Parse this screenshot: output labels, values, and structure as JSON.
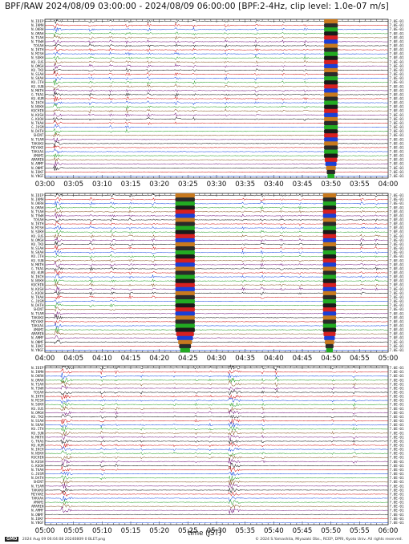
{
  "title": "BPF/RAW 2024/08/09 03:00:00 - 2024/08/09 06:00:00 [BPF:2-4Hz,  clip level: 1.0e-07 m/s]",
  "footer": {
    "logo": "GMO",
    "left_text": "2024 Aug 09 06:04:08   20240809 0 BLET.png",
    "right_text": "© 2024 S.Yamashita, Miyazaki Obs., RCEP, DPRI, Kyoto Univ. All rights reserved."
  },
  "colors": {
    "trace_cycle": [
      "#1a1a1a",
      "#d02020",
      "#1f4fe0",
      "#2aa02a",
      "#8b5a2b",
      "#7a2080"
    ],
    "clip_band": [
      "#c8791e",
      "#2a2a2a",
      "#22aa22",
      "#1a1a1a",
      "#d62020",
      "#1a3fd8"
    ]
  },
  "chart_data": {
    "type": "seismogram",
    "xlabel": "time (JST)",
    "stations": [
      "N.IDIP",
      "N.IKMH",
      "N.OKRH",
      "N.OMAH",
      "N.TSAH",
      "N.TSWH",
      "TOSAH",
      "N.IKTH",
      "N.MISH",
      "N.SUKH",
      "KU.SUS",
      "N.OMGH",
      "KU.TKO",
      "N.SSAH",
      "N.SKAH",
      "KU.ITH",
      "KU.SUN",
      "N.MKTH",
      "G.TKAG",
      "KU.KUM",
      "N.IKCH",
      "N.NSKH",
      "KUCHIN",
      "N.KUSH",
      "G.KUOH",
      "N.TKAH",
      "G.JUSM",
      "N.DATH",
      "SHINT",
      "N.TSAM",
      "TAKAKU",
      "MIYAKE",
      "TAKAAA",
      "AMAMI",
      "AMAMIN",
      "N.AMMF",
      "N.ONMF",
      "N.IOKF",
      "N.YNGF"
    ],
    "amplitude_label": "7.0E-01",
    "panels": [
      {
        "x_ticks": [
          "03:00",
          "03:05",
          "03:10",
          "03:15",
          "03:20",
          "03:25",
          "03:30",
          "03:35",
          "03:40",
          "03:45",
          "03:50",
          "03:55",
          "04:00"
        ],
        "x_range_min": [
          0,
          60
        ],
        "events": [
          {
            "t": 1.6,
            "dur": 1.4,
            "amp": 1.0,
            "cover": 0.94
          },
          {
            "t": 7.8,
            "dur": 1.0,
            "amp": 0.55,
            "cover": 0.62
          },
          {
            "t": 11.3,
            "dur": 0.8,
            "amp": 0.55,
            "cover": 0.7
          },
          {
            "t": 14.2,
            "dur": 1.1,
            "amp": 0.6,
            "cover": 0.7
          },
          {
            "t": 18.0,
            "dur": 0.9,
            "amp": 0.5,
            "cover": 0.65
          },
          {
            "t": 22.8,
            "dur": 1.0,
            "amp": 0.55,
            "cover": 0.66
          },
          {
            "t": 26.0,
            "dur": 0.7,
            "amp": 0.45,
            "cover": 0.62
          },
          {
            "t": 31.5,
            "dur": 0.8,
            "amp": 0.45,
            "cover": 0.6
          },
          {
            "t": 36.8,
            "dur": 0.8,
            "amp": 0.5,
            "cover": 0.62
          },
          {
            "t": 41.5,
            "dur": 0.7,
            "amp": 0.4,
            "cover": 0.58
          },
          {
            "t": 45.3,
            "dur": 0.8,
            "amp": 0.5,
            "cover": 0.64
          }
        ],
        "clip": [
          {
            "start": 48.8,
            "end": 51.2
          }
        ]
      },
      {
        "x_ticks": [
          "04:00",
          "04:05",
          "04:10",
          "04:15",
          "04:20",
          "04:25",
          "04:30",
          "04:35",
          "04:40",
          "04:45",
          "04:50",
          "04:55",
          "05:00"
        ],
        "x_range_min": [
          60,
          120
        ],
        "events": [
          {
            "t": 1.8,
            "dur": 1.4,
            "amp": 1.0,
            "cover": 0.94
          },
          {
            "t": 8.0,
            "dur": 0.8,
            "amp": 0.5,
            "cover": 0.7
          },
          {
            "t": 11.5,
            "dur": 1.0,
            "amp": 0.55,
            "cover": 0.72
          },
          {
            "t": 14.8,
            "dur": 0.9,
            "amp": 0.5,
            "cover": 0.66
          },
          {
            "t": 18.8,
            "dur": 0.8,
            "amp": 0.5,
            "cover": 0.66
          },
          {
            "t": 34.5,
            "dur": 0.8,
            "amp": 0.45,
            "cover": 0.62
          },
          {
            "t": 37.8,
            "dur": 0.9,
            "amp": 0.5,
            "cover": 0.66
          },
          {
            "t": 41.2,
            "dur": 0.8,
            "amp": 0.45,
            "cover": 0.6
          },
          {
            "t": 44.5,
            "dur": 0.7,
            "amp": 0.45,
            "cover": 0.62
          },
          {
            "t": 55.2,
            "dur": 0.8,
            "amp": 0.5,
            "cover": 0.64
          },
          {
            "t": 57.8,
            "dur": 0.7,
            "amp": 0.45,
            "cover": 0.6
          }
        ],
        "clip": [
          {
            "start": 22.8,
            "end": 26.2
          },
          {
            "start": 48.6,
            "end": 50.9
          }
        ]
      },
      {
        "x_ticks": [
          "05:00",
          "05:05",
          "05:10",
          "05:15",
          "05:20",
          "05:25",
          "05:30",
          "05:35",
          "05:40",
          "05:45",
          "05:50",
          "05:55",
          "06:00"
        ],
        "x_range_min": [
          120,
          180
        ],
        "events": [
          {
            "t": 3.0,
            "dur": 1.8,
            "amp": 1.0,
            "cover": 0.92
          },
          {
            "t": 9.8,
            "dur": 0.9,
            "amp": 0.55,
            "cover": 0.7
          },
          {
            "t": 12.3,
            "dur": 0.8,
            "amp": 0.5,
            "cover": 0.66
          },
          {
            "t": 16.8,
            "dur": 0.7,
            "amp": 0.45,
            "cover": 0.6
          },
          {
            "t": 22.5,
            "dur": 0.6,
            "amp": 0.4,
            "cover": 0.55
          },
          {
            "t": 26.3,
            "dur": 0.7,
            "amp": 0.45,
            "cover": 0.6
          },
          {
            "t": 28.8,
            "dur": 0.7,
            "amp": 0.45,
            "cover": 0.6
          },
          {
            "t": 32.2,
            "dur": 2.2,
            "amp": 1.0,
            "cover": 0.9
          },
          {
            "t": 38.0,
            "dur": 0.7,
            "amp": 0.45,
            "cover": 0.6
          },
          {
            "t": 40.4,
            "dur": 0.5,
            "amp": 0.9,
            "cover": 0.2
          },
          {
            "t": 50.2,
            "dur": 0.6,
            "amp": 0.45,
            "cover": 0.58
          },
          {
            "t": 54.0,
            "dur": 0.7,
            "amp": 0.45,
            "cover": 0.6
          }
        ],
        "clip": []
      }
    ]
  }
}
